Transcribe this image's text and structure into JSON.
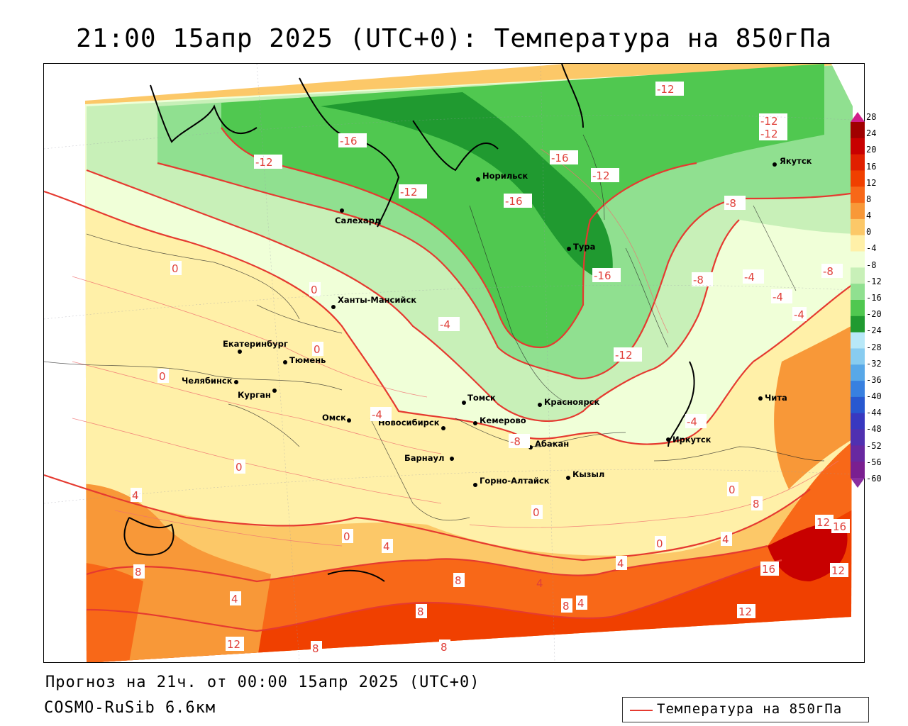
{
  "title": "21:00 15апр 2025 (UTC+0): Температура на 850гПа",
  "footer": {
    "forecast": "Прогноз на 21ч. от 00:00 15апр 2025 (UTC+0)",
    "model": "COSMO-RuSib 6.6км"
  },
  "legend": {
    "label": "Температура на 850гПа",
    "line_color": "#e53a30"
  },
  "colorbar": {
    "ticks": [
      "28",
      "24",
      "20",
      "16",
      "12",
      "8",
      "4",
      "0",
      "-4",
      "-8",
      "-12",
      "-16",
      "-20",
      "-24",
      "-28",
      "-32",
      "-36",
      "-40",
      "-44",
      "-48",
      "-52",
      "-56",
      "-60"
    ],
    "colors": [
      "#a00000",
      "#c80000",
      "#e02000",
      "#f04000",
      "#f86818",
      "#f89838",
      "#fcc868",
      "#fff0a8",
      "#f0ffd8",
      "#c8f0b8",
      "#90e090",
      "#50c850",
      "#209a30",
      "#b8e8f8",
      "#88ccf0",
      "#58a8e8",
      "#3880e0",
      "#2858d0",
      "#3838c0",
      "#5030b0",
      "#6828a0",
      "#7a1f90"
    ]
  },
  "cities": [
    {
      "name": "Норильск"
    },
    {
      "name": "Салехард"
    },
    {
      "name": "Тура"
    },
    {
      "name": "Якутск"
    },
    {
      "name": "Ханты-Мансийск"
    },
    {
      "name": "Екатеринбург"
    },
    {
      "name": "Тюмень"
    },
    {
      "name": "Челябинск"
    },
    {
      "name": "Курган"
    },
    {
      "name": "Омск"
    },
    {
      "name": "Новосибирск"
    },
    {
      "name": "Томск"
    },
    {
      "name": "Кемерово"
    },
    {
      "name": "Красноярск"
    },
    {
      "name": "Барнаул"
    },
    {
      "name": "Абакан"
    },
    {
      "name": "Горно-Алтайск"
    },
    {
      "name": "Кызыл"
    },
    {
      "name": "Иркутск"
    },
    {
      "name": "Чита"
    }
  ],
  "isotherm_labels": [
    "-16",
    "-12",
    "-12",
    "-12",
    "-16",
    "-16",
    "-12",
    "-16",
    "-8",
    "-8",
    "-8",
    "-4",
    "-4",
    "-4",
    "-12",
    "-12",
    "-12",
    "0",
    "0",
    "0",
    "0",
    "-4",
    "-8",
    "-4",
    "-4",
    "0",
    "4",
    "4",
    "0",
    "4",
    "0",
    "0",
    "4",
    "8",
    "8",
    "8",
    "8",
    "8",
    "12",
    "12",
    "12",
    "16",
    "16",
    "4",
    "4",
    "4",
    "8",
    "8",
    "12",
    "0"
  ]
}
